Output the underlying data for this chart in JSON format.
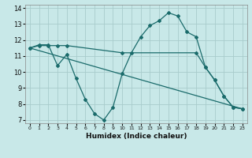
{
  "bg_color": "#c8e8e8",
  "grid_color": "#a8cccc",
  "line_color": "#1a6b6b",
  "xlabel": "Humidex (Indice chaleur)",
  "xlim": [
    -0.5,
    23.5
  ],
  "ylim": [
    6.8,
    14.2
  ],
  "yticks": [
    7,
    8,
    9,
    10,
    11,
    12,
    13,
    14
  ],
  "xticks": [
    0,
    1,
    2,
    3,
    4,
    5,
    6,
    7,
    8,
    9,
    10,
    11,
    12,
    13,
    14,
    15,
    16,
    17,
    18,
    19,
    20,
    21,
    22,
    23
  ],
  "line1_x": [
    0,
    1,
    2,
    3,
    4,
    5,
    6,
    7,
    8,
    9,
    10,
    11,
    12,
    13,
    14,
    15,
    16,
    17,
    18,
    19,
    20,
    21,
    22,
    23
  ],
  "line1_y": [
    11.5,
    11.7,
    11.7,
    10.4,
    11.1,
    9.6,
    8.3,
    7.4,
    7.0,
    7.8,
    9.9,
    11.2,
    12.2,
    12.9,
    13.2,
    13.7,
    13.5,
    12.5,
    12.2,
    10.3,
    9.5,
    8.5,
    7.8,
    7.7
  ],
  "line2_x": [
    0,
    1,
    2,
    3,
    4,
    10,
    18,
    19,
    20,
    21,
    22,
    23
  ],
  "line2_y": [
    11.5,
    11.65,
    11.65,
    11.65,
    11.65,
    11.2,
    11.2,
    10.3,
    9.5,
    8.5,
    7.8,
    7.7
  ],
  "line3_x": [
    0,
    23
  ],
  "line3_y": [
    11.5,
    7.7
  ]
}
